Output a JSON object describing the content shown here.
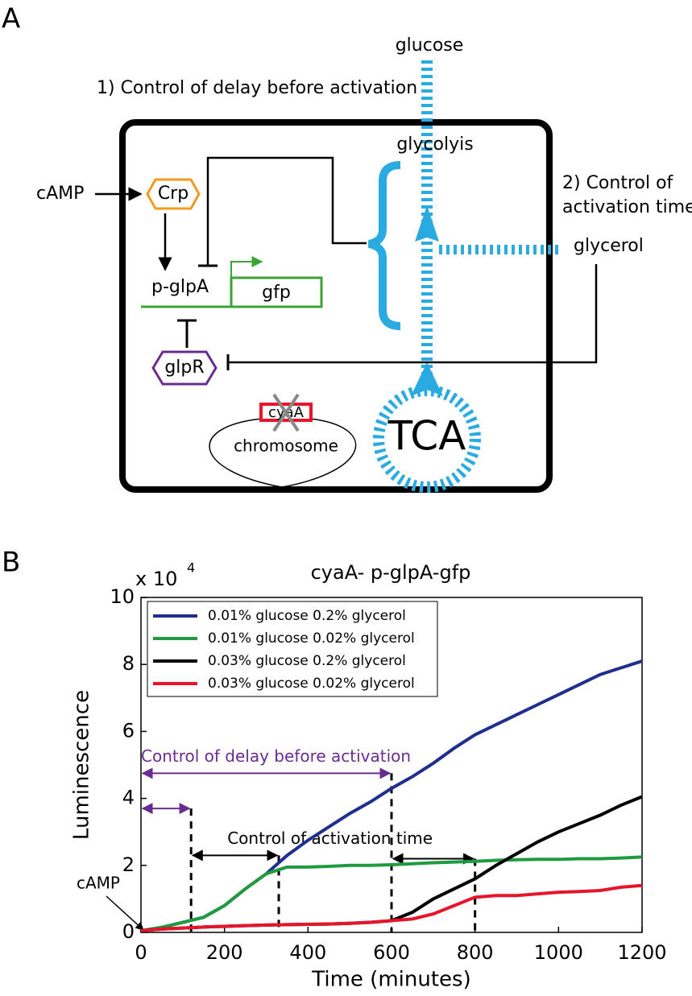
{
  "panel_a": {
    "label": "A",
    "glucose": "glucose",
    "delay_note": "1) Control of delay before activation",
    "glycolysis": "glycolyis",
    "activation_note": [
      "2) Control of",
      "activation time"
    ],
    "camp": "cAMP",
    "crp": "Crp",
    "promoter": "p-glpA",
    "gene": "gfp",
    "glycerol": "glycerol",
    "repressor": "glpR",
    "deleted_gene": "cyaA",
    "chromosome": "chromosome",
    "tca": "TCA"
  },
  "chart_data": {
    "type": "line",
    "panel_label": "B",
    "title": "cyaA- p-glpA-gfp",
    "xlabel": "Time (minutes)",
    "ylabel": "Luminescence",
    "y_multiplier": "x 10",
    "y_multiplier_exp": "4",
    "x": [
      0,
      50,
      100,
      150,
      200,
      250,
      300,
      350,
      400,
      450,
      500,
      550,
      600,
      650,
      700,
      750,
      800,
      850,
      900,
      950,
      1000,
      1050,
      1100,
      1150,
      1200
    ],
    "series": [
      {
        "name": "0.01% glucose 0.2% glycerol",
        "color": "#1f2f8f",
        "values": [
          0.05,
          0.15,
          0.3,
          0.45,
          0.8,
          1.3,
          1.75,
          2.3,
          2.75,
          3.15,
          3.55,
          3.9,
          4.3,
          4.65,
          5.05,
          5.5,
          5.9,
          6.2,
          6.5,
          6.8,
          7.1,
          7.4,
          7.7,
          7.9,
          8.1
        ]
      },
      {
        "name": "0.01% glucose 0.02% glycerol",
        "color": "#1f9a3f",
        "values": [
          0.05,
          0.15,
          0.3,
          0.45,
          0.8,
          1.3,
          1.75,
          1.95,
          1.95,
          1.97,
          2.0,
          2.0,
          2.02,
          2.05,
          2.08,
          2.1,
          2.12,
          2.15,
          2.17,
          2.18,
          2.18,
          2.2,
          2.2,
          2.22,
          2.25
        ]
      },
      {
        "name": "0.03% glucose 0.2% glycerol",
        "color": "#000000",
        "values": [
          0.05,
          0.1,
          0.13,
          0.16,
          0.18,
          0.2,
          0.22,
          0.23,
          0.24,
          0.25,
          0.27,
          0.3,
          0.35,
          0.6,
          1.0,
          1.3,
          1.6,
          2.0,
          2.35,
          2.7,
          3.0,
          3.25,
          3.5,
          3.8,
          4.05
        ]
      },
      {
        "name": "0.03% glucose 0.02% glycerol",
        "color": "#e8152a",
        "values": [
          0.05,
          0.1,
          0.13,
          0.16,
          0.18,
          0.2,
          0.22,
          0.23,
          0.24,
          0.25,
          0.27,
          0.3,
          0.35,
          0.4,
          0.55,
          0.8,
          1.05,
          1.1,
          1.1,
          1.15,
          1.2,
          1.22,
          1.25,
          1.35,
          1.4
        ]
      }
    ],
    "xlim": [
      0,
      1200
    ],
    "xticks": [
      0,
      200,
      400,
      600,
      800,
      1000,
      1200
    ],
    "ylim": [
      0,
      10
    ],
    "yticks": [
      0,
      2,
      4,
      6,
      8,
      10
    ],
    "legend": "upper left",
    "annotations": [
      {
        "text": "Control of delay before activation",
        "color": "#6a2c8f",
        "arrows": [
          {
            "x": [
              0,
              600
            ],
            "y": 4.75
          },
          {
            "x": [
              0,
              120
            ],
            "y": 3.7
          }
        ]
      },
      {
        "text": "Control of activation time",
        "color": "#000000",
        "arrows": [
          {
            "x": [
              120,
              330
            ],
            "y": 2.3
          },
          {
            "x": [
              600,
              800
            ],
            "y": 2.2
          }
        ]
      }
    ],
    "dashed_lines": [
      {
        "x": 120,
        "y": 3.7
      },
      {
        "x": 330,
        "y": 2.3
      },
      {
        "x": 600,
        "y": 4.75
      },
      {
        "x": 800,
        "y": 2.2
      }
    ],
    "pointer": {
      "text": "cAMP",
      "x": 0,
      "y": 0
    }
  }
}
